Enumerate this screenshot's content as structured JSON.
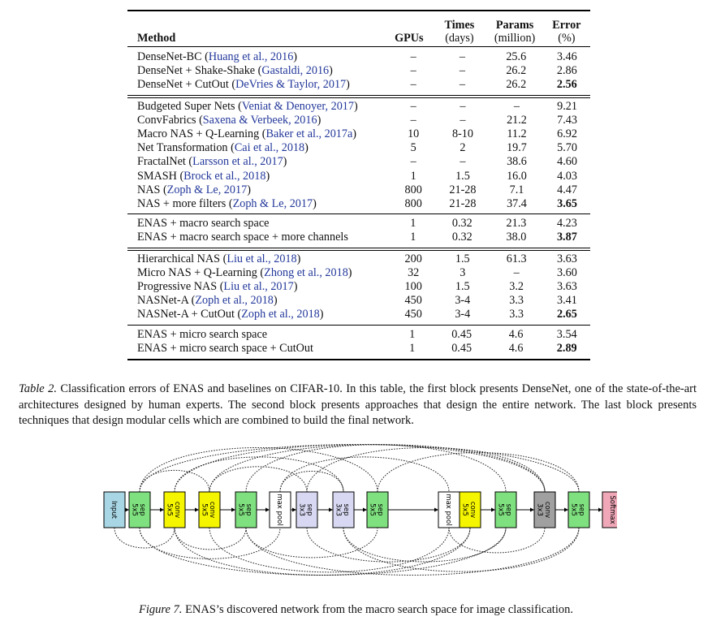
{
  "table": {
    "headers": {
      "method": "Method",
      "gpus": "GPUs",
      "times": "Times",
      "times_unit": "(days)",
      "params": "Params",
      "params_unit": "(million)",
      "error": "Error",
      "error_unit": "(%)"
    },
    "blocks": [
      {
        "rows": [
          {
            "method": "DenseNet-BC",
            "cite": "Huang et al., 2016",
            "gpus": "–",
            "times": "–",
            "params": "25.6",
            "error": "3.46",
            "best": false
          },
          {
            "method": "DenseNet + Shake-Shake",
            "cite": "Gastaldi, 2016",
            "gpus": "–",
            "times": "–",
            "params": "26.2",
            "error": "2.86",
            "best": false
          },
          {
            "method": "DenseNet + CutOut",
            "cite": "DeVries & Taylor, 2017",
            "gpus": "–",
            "times": "–",
            "params": "26.2",
            "error": "2.56",
            "best": true
          }
        ]
      },
      {
        "rows": [
          {
            "method": "Budgeted Super Nets",
            "cite": "Veniat & Denoyer, 2017",
            "gpus": "–",
            "times": "–",
            "params": "–",
            "error": "9.21",
            "best": false
          },
          {
            "method": "ConvFabrics",
            "cite": "Saxena & Verbeek, 2016",
            "gpus": "–",
            "times": "–",
            "params": "21.2",
            "error": "7.43",
            "best": false
          },
          {
            "method": "Macro NAS + Q-Learning",
            "cite": "Baker et al., 2017a",
            "gpus": "10",
            "times": "8-10",
            "params": "11.2",
            "error": "6.92",
            "best": false
          },
          {
            "method": "Net Transformation",
            "cite": "Cai et al., 2018",
            "gpus": "5",
            "times": "2",
            "params": "19.7",
            "error": "5.70",
            "best": false
          },
          {
            "method": "FractalNet",
            "cite": "Larsson et al., 2017",
            "gpus": "–",
            "times": "–",
            "params": "38.6",
            "error": "4.60",
            "best": false
          },
          {
            "method": "SMASH",
            "cite": "Brock et al., 2018",
            "gpus": "1",
            "times": "1.5",
            "params": "16.0",
            "error": "4.03",
            "best": false
          },
          {
            "method": "NAS",
            "cite": "Zoph & Le, 2017",
            "gpus": "800",
            "times": "21-28",
            "params": "7.1",
            "error": "4.47",
            "best": false
          },
          {
            "method": "NAS + more filters",
            "cite": "Zoph & Le, 2017",
            "gpus": "800",
            "times": "21-28",
            "params": "37.4",
            "error": "3.65",
            "best": true
          }
        ]
      },
      {
        "rows": [
          {
            "method": "ENAS + macro search space",
            "cite": "",
            "gpus": "1",
            "times": "0.32",
            "params": "21.3",
            "error": "4.23",
            "best": false
          },
          {
            "method": "ENAS + macro search space + more channels",
            "cite": "",
            "gpus": "1",
            "times": "0.32",
            "params": "38.0",
            "error": "3.87",
            "best": true
          }
        ]
      },
      {
        "rows": [
          {
            "method": "Hierarchical NAS",
            "cite": "Liu et al., 2018",
            "gpus": "200",
            "times": "1.5",
            "params": "61.3",
            "error": "3.63",
            "best": false
          },
          {
            "method": "Micro NAS + Q-Learning",
            "cite": "Zhong et al., 2018",
            "gpus": "32",
            "times": "3",
            "params": "–",
            "error": "3.60",
            "best": false
          },
          {
            "method": "Progressive NAS",
            "cite": "Liu et al., 2017",
            "gpus": "100",
            "times": "1.5",
            "params": "3.2",
            "error": "3.63",
            "best": false
          },
          {
            "method": "NASNet-A",
            "cite": "Zoph et al., 2018",
            "gpus": "450",
            "times": "3-4",
            "params": "3.3",
            "error": "3.41",
            "best": false
          },
          {
            "method": "NASNet-A + CutOut",
            "cite": "Zoph et al., 2018",
            "gpus": "450",
            "times": "3-4",
            "params": "3.3",
            "error": "2.65",
            "best": true
          }
        ]
      },
      {
        "rows": [
          {
            "method": "ENAS + micro search space",
            "cite": "",
            "gpus": "1",
            "times": "0.45",
            "params": "4.6",
            "error": "3.54",
            "best": false
          },
          {
            "method": "ENAS + micro search space + CutOut",
            "cite": "",
            "gpus": "1",
            "times": "0.45",
            "params": "4.6",
            "error": "2.89",
            "best": true
          }
        ]
      }
    ]
  },
  "table_caption": {
    "lead": "Table 2.",
    "text": " Classification errors of ENAS and baselines on CIFAR-10. In this table, the first block presents DenseNet, one of the state-of-the-art architectures designed by human experts. The second block presents approaches that design the entire network. The last block presents techniques that design modular cells which are combined to build the final network."
  },
  "figure": {
    "nodes": [
      {
        "label": "Input",
        "color": "#a9d6e5"
      },
      {
        "label": "sep\n5x5",
        "color": "#7fe07f"
      },
      {
        "label": "conv\n5x5",
        "color": "#f5f500"
      },
      {
        "label": "conv\n5x5",
        "color": "#f5f500"
      },
      {
        "label": "sep\n5x5",
        "color": "#7fe07f"
      },
      {
        "label": "max pool",
        "color": "#ffffff"
      },
      {
        "label": "sep\n3x3",
        "color": "#d8d8f2"
      },
      {
        "label": "sep\n3x3",
        "color": "#d8d8f2"
      },
      {
        "label": "sep\n5x5",
        "color": "#7fe07f"
      },
      {
        "label": "max pool",
        "color": "#ffffff"
      },
      {
        "label": "conv\n5x5",
        "color": "#f5f500"
      },
      {
        "label": "sep\n5x5",
        "color": "#7fe07f"
      },
      {
        "label": "conv\n3x3",
        "color": "#a0a0a0"
      },
      {
        "label": "sep\n5x5",
        "color": "#7fe07f"
      },
      {
        "label": "Softmax",
        "color": "#f0a8b8"
      }
    ],
    "skip_edges": [
      [
        1,
        3
      ],
      [
        1,
        5
      ],
      [
        1,
        8
      ],
      [
        1,
        11
      ],
      [
        1,
        13
      ],
      [
        2,
        4
      ],
      [
        2,
        7
      ],
      [
        2,
        10
      ],
      [
        3,
        6
      ],
      [
        3,
        9
      ],
      [
        3,
        12
      ],
      [
        4,
        8
      ],
      [
        4,
        11
      ],
      [
        4,
        13
      ],
      [
        5,
        7
      ],
      [
        6,
        10
      ],
      [
        6,
        12
      ],
      [
        7,
        11
      ],
      [
        8,
        13
      ],
      [
        9,
        12
      ],
      [
        2,
        12
      ],
      [
        0,
        2
      ],
      [
        5,
        9
      ],
      [
        7,
        13
      ]
    ]
  },
  "figure_caption": {
    "lead": "Figure 7.",
    "text": " ENAS’s discovered network from the macro search space for image classification."
  }
}
